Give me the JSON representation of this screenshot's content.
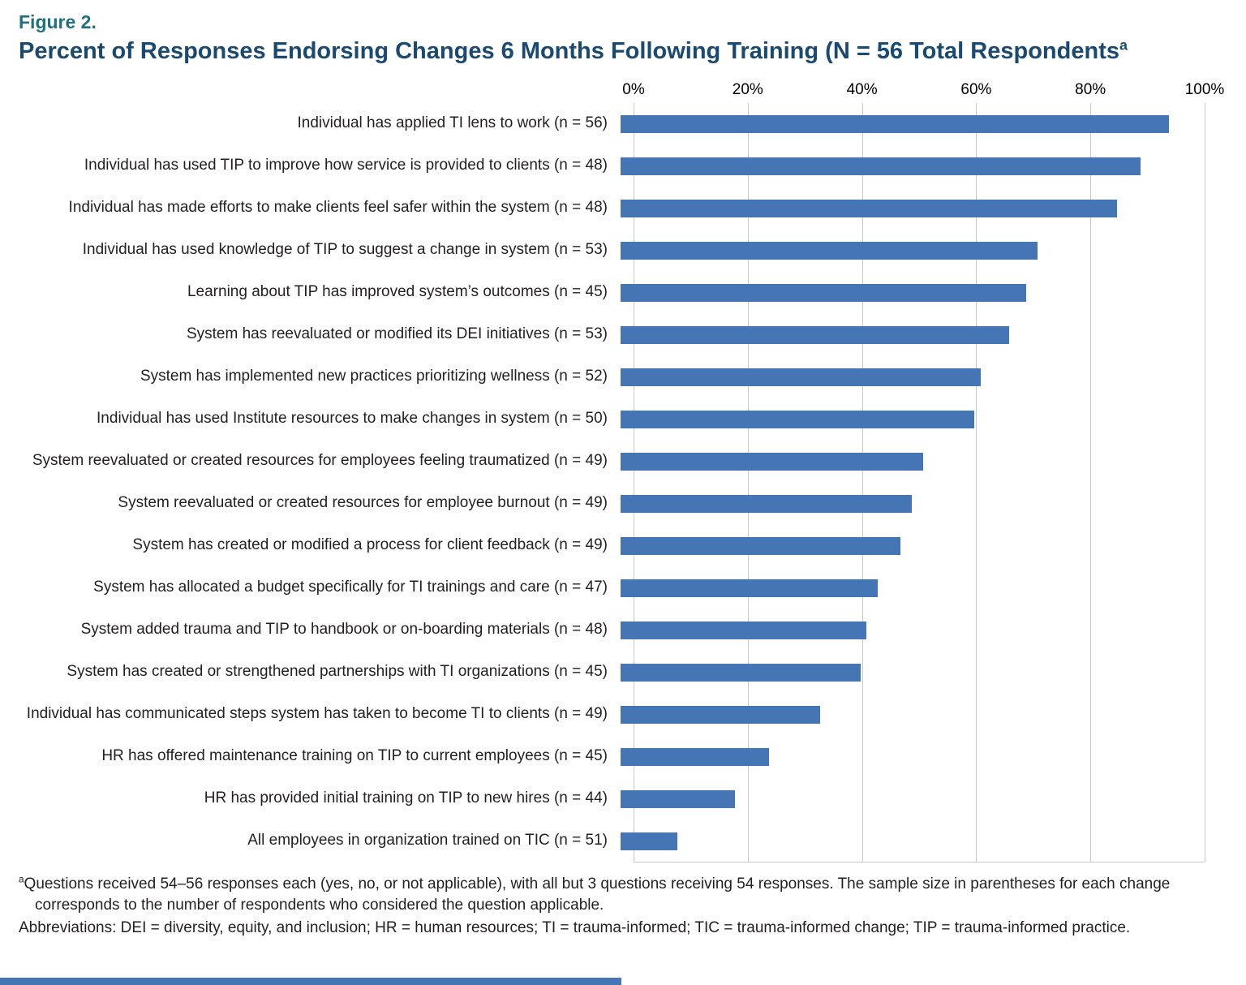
{
  "figure": {
    "label": "Figure 2.",
    "title": "Percent of Responses Endorsing Changes 6 Months Following Training (N = 56 Total Respondents",
    "title_superscript": "a"
  },
  "chart_data": {
    "type": "bar",
    "orientation": "horizontal",
    "title": "Percent of Responses Endorsing Changes 6 Months Following Training (N = 56 Total Respondents)",
    "xlabel": "",
    "ylabel": "",
    "xlim": [
      0,
      100
    ],
    "grid": "vertical-gridlines-at-20-percent",
    "legend": "none",
    "x_ticks": [
      {
        "value": 0,
        "label": "0%"
      },
      {
        "value": 20,
        "label": "20%"
      },
      {
        "value": 40,
        "label": "40%"
      },
      {
        "value": 60,
        "label": "60%"
      },
      {
        "value": 80,
        "label": "80%"
      },
      {
        "value": 100,
        "label": "100%"
      }
    ],
    "categories": [
      "Individual has applied TI lens to work (n = 56)",
      "Individual has used TIP to improve how service is provided to clients (n = 48)",
      "Individual has made efforts to make clients feel safer within the system (n = 48)",
      "Individual has used knowledge of TIP to suggest a change in system (n = 53)",
      "Learning about TIP has improved system’s outcomes (n = 45)",
      "System has reevaluated or modified its DEI initiatives (n = 53)",
      "System has implemented new practices prioritizing wellness (n = 52)",
      "Individual has used Institute resources to make changes in system (n = 50)",
      "System reevaluated or created resources for employees feeling traumatized (n = 49)",
      "System reevaluated or created resources for employee burnout (n = 49)",
      "System has created or modified a process for client feedback (n = 49)",
      "System has allocated a budget specifically for TI trainings and care (n = 47)",
      "System added trauma and TIP to handbook or on-boarding materials (n = 48)",
      "System has created or strengthened partnerships with TI organizations (n = 45)",
      "Individual has communicated steps system has taken to become TI to clients (n = 49)",
      "HR has offered maintenance training on TIP to current employees (n = 45)",
      "HR has provided initial training on TIP to new hires (n = 44)",
      "All employees in organization trained on TIC (n = 51)"
    ],
    "values": [
      96,
      91,
      87,
      73,
      71,
      68,
      63,
      62,
      53,
      51,
      49,
      45,
      43,
      42,
      35,
      26,
      20,
      10
    ]
  },
  "footnotes": {
    "note_superscript": "a",
    "note": "Questions received 54–56 responses each (yes, no, or not applicable), with all but 3 questions receiving 54 responses. The sample size in parentheses for each change corresponds to the number of respondents who considered the question applicable.",
    "abbreviations": "Abbreviations: DEI = diversity, equity, and inclusion; HR = human resources; TI = trauma-informed; TIC = trauma-informed change; TIP = trauma-informed practice."
  },
  "colors": {
    "figure_label": "#21707f",
    "title": "#1a4971",
    "bar": "#4575b4",
    "gridline": "#c9c9c9",
    "text": "#231f20",
    "accent_bar": "#4575b4"
  }
}
